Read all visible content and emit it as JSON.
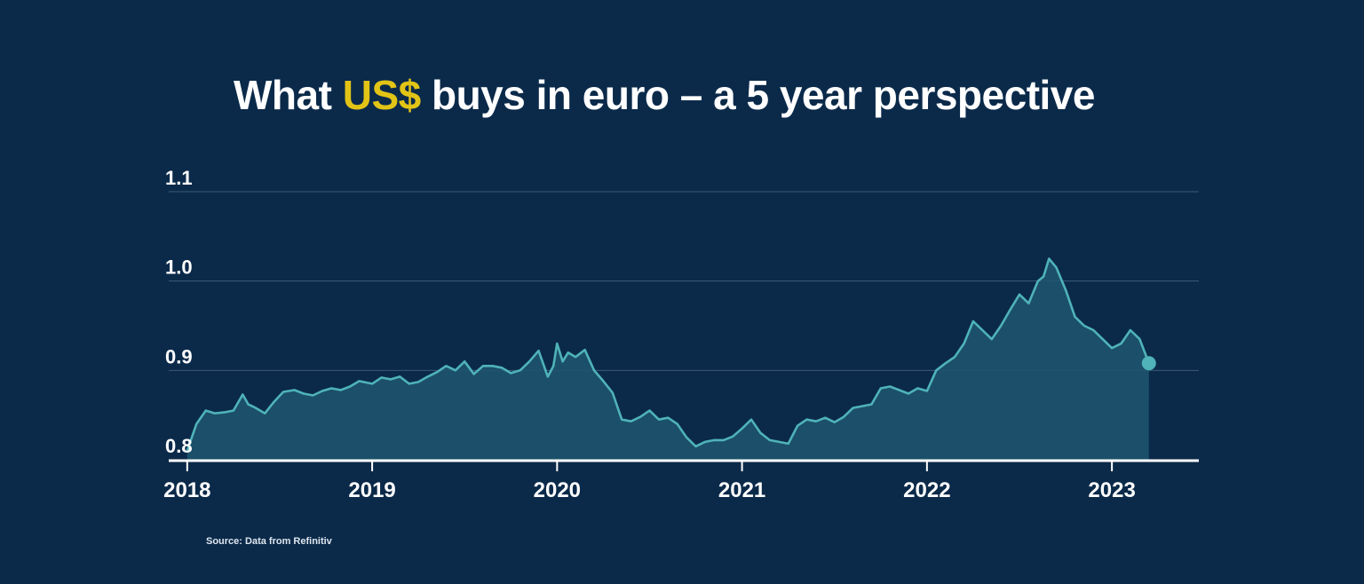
{
  "colors": {
    "background": "#0b2a4a",
    "title_highlight": "#e2c416",
    "line": "#4fb3b9",
    "area_fill": "#1f5670",
    "grid": "#3d5a78",
    "axis": "#ffffff",
    "text": "#ffffff"
  },
  "title": {
    "before": "What ",
    "highlight": "US$",
    "after": " buys in euro – a 5 year perspective"
  },
  "source": "Source: Data from Refinitiv",
  "chart_data": {
    "type": "area",
    "title": "What US$ buys in euro – a 5 year perspective",
    "xlabel": "",
    "ylabel": "",
    "ylim": [
      0.8,
      1.1
    ],
    "y_ticks": [
      {
        "value": 0.8,
        "label": "0.8"
      },
      {
        "value": 0.9,
        "label": "0.9"
      },
      {
        "value": 1.0,
        "label": "1.0"
      },
      {
        "value": 1.1,
        "label": "1.1"
      }
    ],
    "xlim": [
      2017.9,
      2023.47
    ],
    "x_ticks": [
      {
        "value": 2018,
        "label": "2018"
      },
      {
        "value": 2019,
        "label": "2019"
      },
      {
        "value": 2020,
        "label": "2020"
      },
      {
        "value": 2021,
        "label": "2021"
      },
      {
        "value": 2022,
        "label": "2022"
      },
      {
        "value": 2023,
        "label": "2023"
      }
    ],
    "grid": true,
    "legend": "none",
    "end_marker": true,
    "series": [
      {
        "x": [
          2018.0,
          2018.05,
          2018.1,
          2018.15,
          2018.2,
          2018.25,
          2018.3,
          2018.33,
          2018.37,
          2018.42,
          2018.47,
          2018.52,
          2018.58,
          2018.63,
          2018.68,
          2018.73,
          2018.78,
          2018.83,
          2018.88,
          2018.93,
          2019.0,
          2019.05,
          2019.1,
          2019.15,
          2019.2,
          2019.25,
          2019.3,
          2019.35,
          2019.4,
          2019.45,
          2019.5,
          2019.55,
          2019.6,
          2019.65,
          2019.7,
          2019.75,
          2019.8,
          2019.85,
          2019.9,
          2019.95,
          2019.98,
          2020.0,
          2020.03,
          2020.06,
          2020.1,
          2020.15,
          2020.2,
          2020.25,
          2020.3,
          2020.35,
          2020.4,
          2020.45,
          2020.5,
          2020.55,
          2020.6,
          2020.65,
          2020.7,
          2020.75,
          2020.8,
          2020.85,
          2020.9,
          2020.95,
          2021.0,
          2021.05,
          2021.1,
          2021.15,
          2021.2,
          2021.25,
          2021.3,
          2021.35,
          2021.4,
          2021.45,
          2021.5,
          2021.55,
          2021.6,
          2021.65,
          2021.7,
          2021.75,
          2021.8,
          2021.85,
          2021.9,
          2021.95,
          2022.0,
          2022.05,
          2022.1,
          2022.15,
          2022.2,
          2022.25,
          2022.3,
          2022.35,
          2022.4,
          2022.45,
          2022.5,
          2022.55,
          2022.6,
          2022.63,
          2022.66,
          2022.7,
          2022.75,
          2022.8,
          2022.85,
          2022.9,
          2022.95,
          2023.0,
          2023.05,
          2023.1,
          2023.15,
          2023.2
        ],
        "values": [
          0.81,
          0.84,
          0.855,
          0.852,
          0.853,
          0.855,
          0.873,
          0.862,
          0.858,
          0.852,
          0.865,
          0.876,
          0.878,
          0.874,
          0.872,
          0.877,
          0.88,
          0.878,
          0.882,
          0.888,
          0.885,
          0.892,
          0.89,
          0.893,
          0.885,
          0.887,
          0.893,
          0.898,
          0.905,
          0.9,
          0.91,
          0.896,
          0.905,
          0.905,
          0.903,
          0.897,
          0.9,
          0.91,
          0.922,
          0.893,
          0.905,
          0.93,
          0.91,
          0.92,
          0.915,
          0.923,
          0.9,
          0.888,
          0.875,
          0.845,
          0.843,
          0.848,
          0.855,
          0.845,
          0.847,
          0.84,
          0.825,
          0.815,
          0.82,
          0.822,
          0.822,
          0.826,
          0.835,
          0.845,
          0.83,
          0.822,
          0.82,
          0.818,
          0.838,
          0.845,
          0.843,
          0.847,
          0.842,
          0.848,
          0.858,
          0.86,
          0.862,
          0.88,
          0.882,
          0.878,
          0.874,
          0.88,
          0.877,
          0.9,
          0.908,
          0.915,
          0.93,
          0.955,
          0.945,
          0.935,
          0.95,
          0.968,
          0.985,
          0.975,
          1.0,
          1.005,
          1.025,
          1.015,
          0.99,
          0.96,
          0.95,
          0.945,
          0.935,
          0.925,
          0.93,
          0.945,
          0.935,
          0.908
        ]
      }
    ]
  }
}
